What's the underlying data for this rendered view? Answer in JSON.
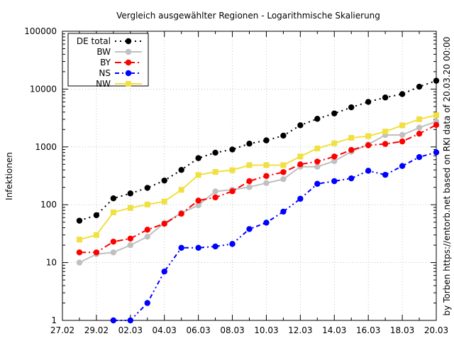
{
  "chart_data": {
    "type": "line",
    "title": "Vergleich ausgewählter Regionen - Logarithmische Skalierung",
    "xlabel": "",
    "ylabel": "Infektionen",
    "side_note": "by Torben https://entorb.net based on RKI data of 20.03.20 00:00",
    "y_scale": "log",
    "ylim": [
      1,
      100000
    ],
    "xlim": [
      "27.02",
      "20.03"
    ],
    "x_tick_labels": [
      "27.02",
      "29.02",
      "02.03",
      "04.03",
      "06.03",
      "08.03",
      "10.03",
      "12.03",
      "14.03",
      "16.03",
      "18.03",
      "20.03"
    ],
    "y_tick_labels": [
      "1",
      "10",
      "100",
      "1000",
      "10000",
      "100000"
    ],
    "grid": true,
    "legend_position": "top-left",
    "x": [
      "28.02",
      "29.02",
      "01.03",
      "02.03",
      "03.03",
      "04.03",
      "05.03",
      "06.03",
      "07.03",
      "08.03",
      "09.03",
      "10.03",
      "11.03",
      "12.03",
      "13.03",
      "14.03",
      "15.03",
      "16.03",
      "17.03",
      "18.03",
      "19.03",
      "20.03"
    ],
    "series": [
      {
        "name": "DE total",
        "color": "#000000",
        "marker": "circle",
        "line": "dotted",
        "values": [
          53,
          66,
          129,
          157,
          196,
          262,
          400,
          639,
          795,
          902,
          1139,
          1296,
          1567,
          2369,
          3062,
          3795,
          4838,
          6012,
          7156,
          8198,
          10999,
          13957
        ]
      },
      {
        "name": "BW",
        "color": "#c0c0c0",
        "marker": "circle",
        "line": "solid",
        "values": [
          10,
          14,
          15,
          20,
          28,
          48,
          72,
          98,
          170,
          182,
          202,
          237,
          277,
          454,
          454,
          569,
          827,
          1105,
          1609,
          1609,
          2155,
          2746
        ]
      },
      {
        "name": "BY",
        "color": "#ff0000",
        "marker": "circle",
        "line": "dashdot",
        "values": [
          15,
          15,
          23,
          26,
          37,
          47,
          70,
          118,
          134,
          171,
          256,
          314,
          366,
          500,
          558,
          681,
          886,
          1067,
          1126,
          1243,
          1692,
          2401
        ]
      },
      {
        "name": "NS",
        "color": "#0000ff",
        "marker": "circle",
        "line": "dashdotdot",
        "values": [
          null,
          null,
          1,
          1,
          2,
          7,
          18,
          18,
          19,
          21,
          38,
          49,
          76,
          127,
          230,
          256,
          286,
          387,
          329,
          467,
          667,
          805
        ]
      },
      {
        "name": "NW",
        "color": "#f0e040",
        "marker": "square",
        "line": "solid",
        "values": [
          25,
          30,
          74,
          88,
          101,
          114,
          181,
          327,
          370,
          396,
          484,
          484,
          484,
          684,
          941,
          1154,
          1433,
          1539,
          1843,
          2365,
          3012,
          3542
        ]
      }
    ]
  }
}
